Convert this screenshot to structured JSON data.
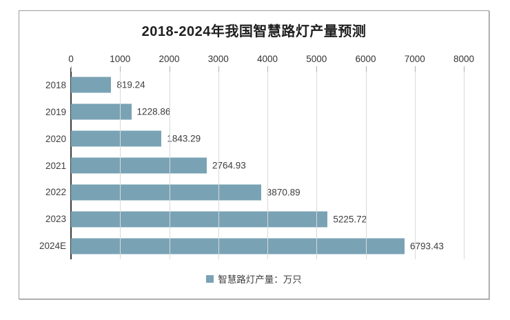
{
  "chart_data": {
    "type": "bar",
    "orientation": "horizontal",
    "title": "2018-2024年我国智慧路灯产量预测",
    "categories": [
      "2018",
      "2019",
      "2020",
      "2021",
      "2022",
      "2023",
      "2024E"
    ],
    "series": [
      {
        "name": "智慧路灯产量：万只",
        "values": [
          819.24,
          1228.86,
          1843.29,
          2764.93,
          3870.89,
          5225.72,
          6793.43
        ],
        "value_labels": [
          "819.24",
          "1228.86",
          "1843.29",
          "2764.93",
          "3870.89",
          "5225.72",
          "6793.43"
        ]
      }
    ],
    "xlim": [
      0,
      8000
    ],
    "x_ticks": [
      "0",
      "1000",
      "2000",
      "3000",
      "4000",
      "5000",
      "6000",
      "7000",
      "8000"
    ],
    "grid": true,
    "legend_position": "bottom",
    "value_labels_shown": true
  },
  "legend": {
    "label": "智慧路灯产量：万只"
  },
  "colors": {
    "bar": "#79a3b4",
    "legend_marker": "#79a3b4",
    "gridline": "#d9d9d9",
    "axis_line": "#3b3b3b",
    "title_text": "#1f1f1f",
    "label_text": "#3d3d3d",
    "border": "#9a9a9a",
    "background": "#ffffff"
  }
}
